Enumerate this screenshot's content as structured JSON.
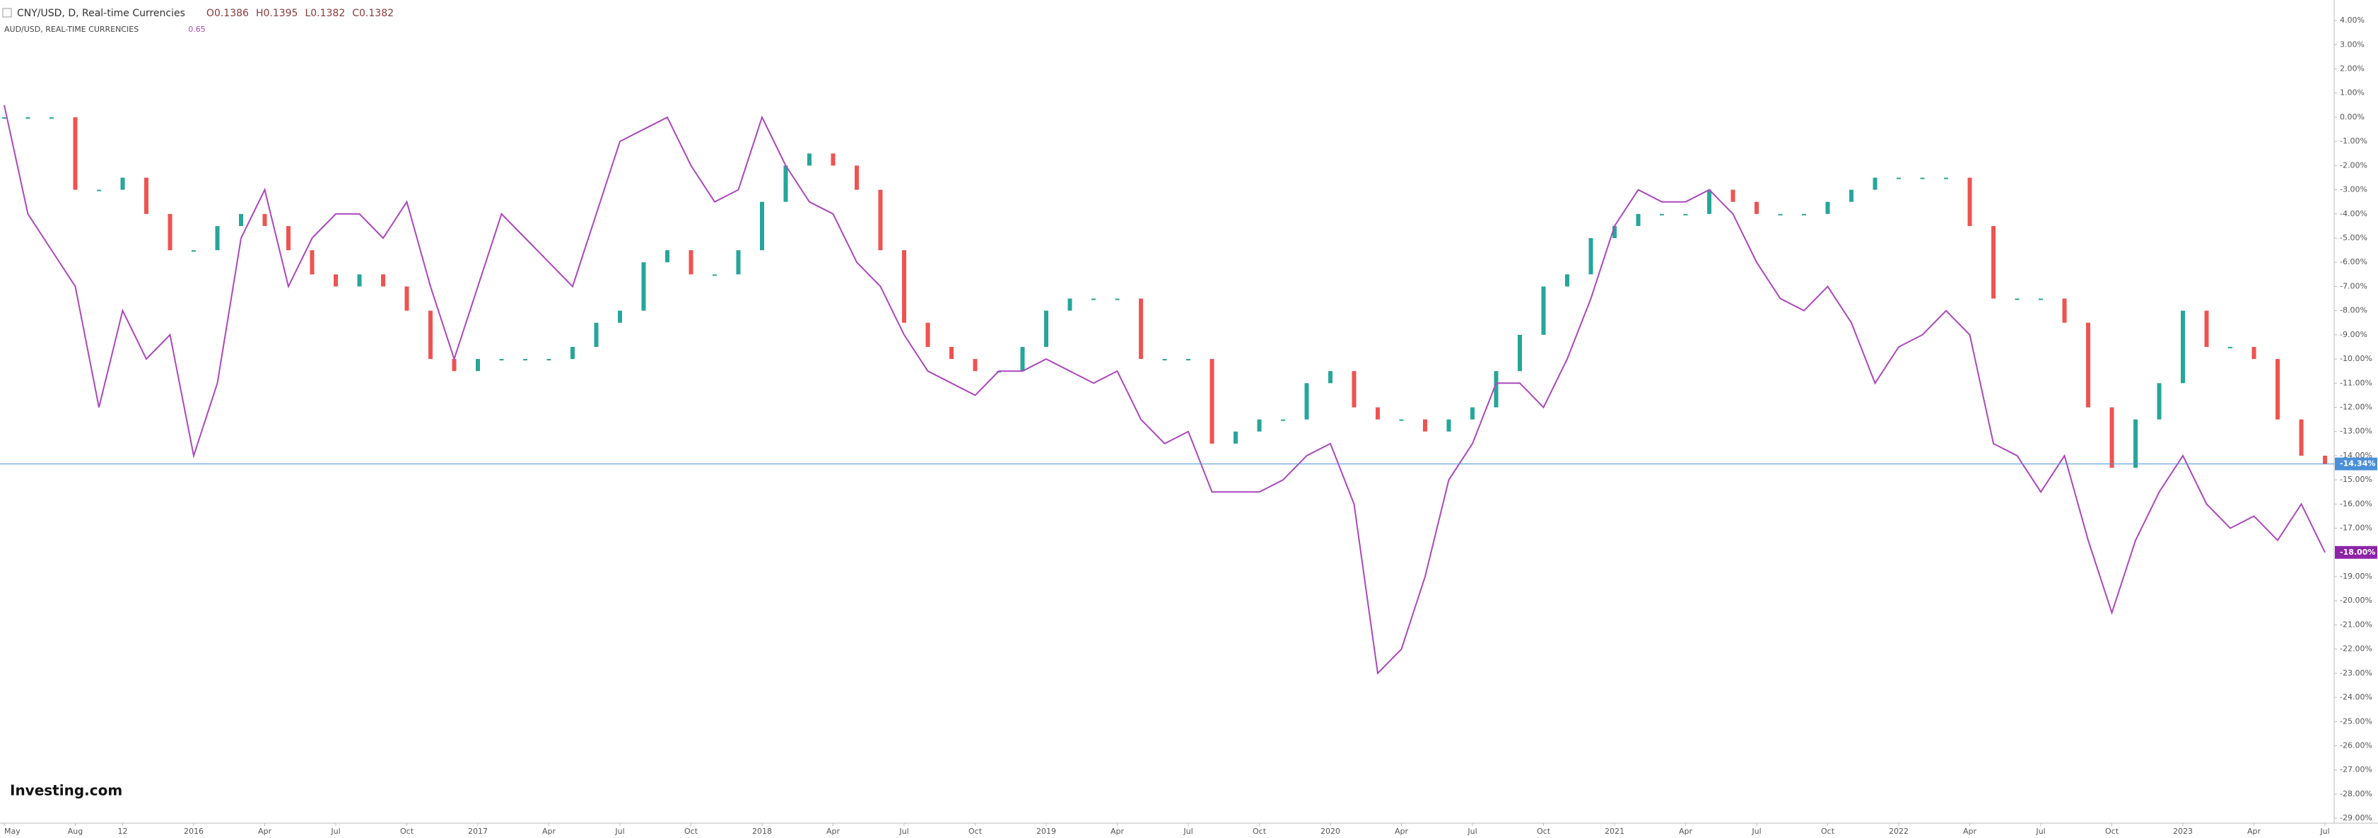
{
  "chart_data": {
    "type": "line",
    "source": "Investing.com",
    "x": [
      "2015-05",
      "2015-06",
      "2015-07",
      "2015-08",
      "2015-09",
      "2015-10",
      "2015-11",
      "2015-12",
      "2016-01",
      "2016-02",
      "2016-03",
      "2016-04",
      "2016-05",
      "2016-06",
      "2016-07",
      "2016-08",
      "2016-09",
      "2016-10",
      "2016-11",
      "2016-12",
      "2017-01",
      "2017-02",
      "2017-03",
      "2017-04",
      "2017-05",
      "2017-06",
      "2017-07",
      "2017-08",
      "2017-09",
      "2017-10",
      "2017-11",
      "2017-12",
      "2018-01",
      "2018-02",
      "2018-03",
      "2018-04",
      "2018-05",
      "2018-06",
      "2018-07",
      "2018-08",
      "2018-09",
      "2018-10",
      "2018-11",
      "2018-12",
      "2019-01",
      "2019-02",
      "2019-03",
      "2019-04",
      "2019-05",
      "2019-06",
      "2019-07",
      "2019-08",
      "2019-09",
      "2019-10",
      "2019-11",
      "2019-12",
      "2020-01",
      "2020-02",
      "2020-03",
      "2020-04",
      "2020-05",
      "2020-06",
      "2020-07",
      "2020-08",
      "2020-09",
      "2020-10",
      "2020-11",
      "2020-12",
      "2021-01",
      "2021-02",
      "2021-03",
      "2021-04",
      "2021-05",
      "2021-06",
      "2021-07",
      "2021-08",
      "2021-09",
      "2021-10",
      "2021-11",
      "2021-12",
      "2022-01",
      "2022-02",
      "2022-03",
      "2022-04",
      "2022-05",
      "2022-06",
      "2022-07",
      "2022-08",
      "2022-09",
      "2022-10",
      "2022-11",
      "2022-12",
      "2023-01",
      "2023-02",
      "2023-03",
      "2023-04",
      "2023-05",
      "2023-06",
      "2023-07"
    ],
    "series": [
      {
        "name": "CNY/USD, D, Real-time Currencies",
        "ohlc": [
          "O0.1386",
          "H0.1395",
          "L0.1382",
          "C0.1382"
        ],
        "up_color": "#26a69a",
        "down_color": "#ef5350",
        "color": "#4a90d9",
        "last_label": "-14.34%",
        "values": [
          0,
          0,
          0,
          -3,
          -3,
          -2.5,
          -4,
          -5.5,
          -5.5,
          -4.5,
          -4,
          -4.5,
          -5.5,
          -6.5,
          -7,
          -6.5,
          -7,
          -8,
          -10,
          -10.5,
          -10,
          -10,
          -10,
          -10,
          -9.5,
          -8.5,
          -8,
          -6,
          -5.5,
          -6.5,
          -6.5,
          -5.5,
          -3.5,
          -2,
          -1.5,
          -2,
          -3,
          -5.5,
          -8.5,
          -9.5,
          -10,
          -10.5,
          -10.5,
          -9.5,
          -8,
          -7.5,
          -7.5,
          -7.5,
          -10,
          -10,
          -10,
          -13.5,
          -13,
          -12.5,
          -12.5,
          -11,
          -10.5,
          -12,
          -12.5,
          -12.5,
          -13,
          -12.5,
          -12,
          -10.5,
          -9,
          -7,
          -6.5,
          -5,
          -4.5,
          -4,
          -4,
          -4,
          -3,
          -3.5,
          -4,
          -4,
          -4,
          -3.5,
          -3,
          -2.5,
          -2.5,
          -2.5,
          -2.5,
          -4.5,
          -7.5,
          -7.5,
          -7.5,
          -8.5,
          -12,
          -14.5,
          -12.5,
          -11,
          -8,
          -9.5,
          -9.5,
          -10,
          -12.5,
          -14,
          -14.34
        ]
      },
      {
        "name": "AUD/USD, REAL-TIME CURRENCIES",
        "last_price": "0.65",
        "color": "#ab47bc",
        "last_label": "-18.00%",
        "values": [
          0.5,
          -4,
          -5.5,
          -7,
          -12,
          -8,
          -10,
          -9,
          -14,
          -11,
          -5,
          -3,
          -7,
          -5,
          -4,
          -4,
          -5,
          -3.5,
          -7,
          -10,
          -7,
          -4,
          -5,
          -6,
          -7,
          -4,
          -1,
          -0.5,
          0,
          -2,
          -3.5,
          -3,
          0,
          -2,
          -3.5,
          -4,
          -6,
          -7,
          -9,
          -10.5,
          -11,
          -11.5,
          -10.5,
          -10.5,
          -10,
          -10.5,
          -11,
          -10.5,
          -12.5,
          -13.5,
          -13,
          -15.5,
          -15.5,
          -15.5,
          -15,
          -14,
          -13.5,
          -16,
          -23,
          -22,
          -19,
          -15,
          -13.5,
          -11,
          -11,
          -12,
          -10,
          -7.5,
          -4.5,
          -3,
          -3.5,
          -3.5,
          -3,
          -4,
          -6,
          -7.5,
          -8,
          -7,
          -8.5,
          -11,
          -9.5,
          -9,
          -8,
          -9,
          -13.5,
          -14,
          -15.5,
          -14,
          -17.5,
          -20.5,
          -17.5,
          -15.5,
          -14,
          -16,
          -17,
          -16.5,
          -17.5,
          -16,
          -18
        ]
      }
    ],
    "xticks": [
      {
        "value": "2015-05",
        "label": "May"
      },
      {
        "value": "2015-08",
        "label": "Aug"
      },
      {
        "value": "2015-10",
        "label": "12"
      },
      {
        "value": "2016-01",
        "label": "2016"
      },
      {
        "value": "2016-04",
        "label": "Apr"
      },
      {
        "value": "2016-07",
        "label": "Jul"
      },
      {
        "value": "2016-10",
        "label": "Oct"
      },
      {
        "value": "2017-01",
        "label": "2017"
      },
      {
        "value": "2017-04",
        "label": "Apr"
      },
      {
        "value": "2017-07",
        "label": "Jul"
      },
      {
        "value": "2017-10",
        "label": "Oct"
      },
      {
        "value": "2018-01",
        "label": "2018"
      },
      {
        "value": "2018-04",
        "label": "Apr"
      },
      {
        "value": "2018-07",
        "label": "Jul"
      },
      {
        "value": "2018-10",
        "label": "Oct"
      },
      {
        "value": "2019-01",
        "label": "2019"
      },
      {
        "value": "2019-04",
        "label": "Apr"
      },
      {
        "value": "2019-07",
        "label": "Jul"
      },
      {
        "value": "2019-10",
        "label": "Oct"
      },
      {
        "value": "2020-01",
        "label": "2020"
      },
      {
        "value": "2020-04",
        "label": "Apr"
      },
      {
        "value": "2020-07",
        "label": "Jul"
      },
      {
        "value": "2020-10",
        "label": "Oct"
      },
      {
        "value": "2021-01",
        "label": "2021"
      },
      {
        "value": "2021-04",
        "label": "Apr"
      },
      {
        "value": "2021-07",
        "label": "Jul"
      },
      {
        "value": "2021-10",
        "label": "Oct"
      },
      {
        "value": "2022-01",
        "label": "2022"
      },
      {
        "value": "2022-04",
        "label": "Apr"
      },
      {
        "value": "2022-07",
        "label": "Jul"
      },
      {
        "value": "2022-10",
        "label": "Oct"
      },
      {
        "value": "2023-01",
        "label": "2023"
      },
      {
        "value": "2023-04",
        "label": "Apr"
      },
      {
        "value": "2023-07",
        "label": "Jul"
      }
    ],
    "ylim": [
      4.85,
      -29.2
    ],
    "yticks": [
      {
        "value": 4,
        "label": "4.00%"
      },
      {
        "value": 3,
        "label": "3.00%"
      },
      {
        "value": 2,
        "label": "2.00%"
      },
      {
        "value": 1,
        "label": "1.00%"
      },
      {
        "value": 0,
        "label": "0.00%"
      },
      {
        "value": -1,
        "label": "-1.00%"
      },
      {
        "value": -2,
        "label": "-2.00%"
      },
      {
        "value": -3,
        "label": "-3.00%"
      },
      {
        "value": -4,
        "label": "-4.00%"
      },
      {
        "value": -5,
        "label": "-5.00%"
      },
      {
        "value": -6,
        "label": "-6.00%"
      },
      {
        "value": -7,
        "label": "-7.00%"
      },
      {
        "value": -8,
        "label": "-8.00%"
      },
      {
        "value": -9,
        "label": "-9.00%"
      },
      {
        "value": -10,
        "label": "-10.00%"
      },
      {
        "value": -11,
        "label": "-11.00%"
      },
      {
        "value": -12,
        "label": "-12.00%"
      },
      {
        "value": -13,
        "label": "-13.00%"
      },
      {
        "value": -14,
        "label": "-14.00%"
      },
      {
        "value": -15,
        "label": "-15.00%"
      },
      {
        "value": -16,
        "label": "-16.00%"
      },
      {
        "value": -17,
        "label": "-17.00%"
      },
      {
        "value": -18,
        "label": "-18.00%"
      },
      {
        "value": -19,
        "label": "-19.00%"
      },
      {
        "value": -20,
        "label": "-20.00%"
      },
      {
        "value": -21,
        "label": "-21.00%"
      },
      {
        "value": -22,
        "label": "-22.00%"
      },
      {
        "value": -23,
        "label": "-23.00%"
      },
      {
        "value": -24,
        "label": "-24.00%"
      },
      {
        "value": -25,
        "label": "-25.00%"
      },
      {
        "value": -26,
        "label": "-26.00%"
      },
      {
        "value": -27,
        "label": "-27.00%"
      },
      {
        "value": -28,
        "label": "-28.00%"
      },
      {
        "value": -29,
        "label": "-29.00%"
      }
    ],
    "grid": false
  }
}
